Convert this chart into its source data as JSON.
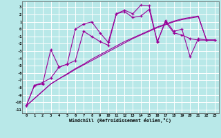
{
  "background_color": "#b8e8e8",
  "grid_color": "#ffffff",
  "line_color": "#990099",
  "xlabel": "Windchill (Refroidissement éolien,°C)",
  "xlim": [
    -0.5,
    23.5
  ],
  "ylim": [
    -11.5,
    3.8
  ],
  "xtick_vals": [
    0,
    1,
    2,
    3,
    4,
    5,
    6,
    7,
    8,
    9,
    10,
    11,
    12,
    13,
    14,
    15,
    16,
    17,
    18,
    19,
    20,
    21,
    22,
    23
  ],
  "xtick_labels": [
    "0",
    "1",
    "2",
    "3",
    "4",
    "5",
    "6",
    "7",
    "8",
    "9",
    "10",
    "11",
    "12",
    "13",
    "14",
    "15",
    "16",
    "17",
    "18",
    "19",
    "20",
    "21",
    "22",
    "23"
  ],
  "ytick_vals": [
    -11,
    -10,
    -9,
    -8,
    -7,
    -6,
    -5,
    -4,
    -3,
    -2,
    -1,
    0,
    1,
    2,
    3
  ],
  "smooth1_x": [
    0,
    1,
    2,
    3,
    4,
    5,
    6,
    7,
    8,
    9,
    10,
    11,
    12,
    13,
    14,
    15,
    16,
    17,
    18,
    19,
    20,
    21,
    22,
    23
  ],
  "smooth1_y": [
    -10.5,
    -9.5,
    -8.5,
    -7.5,
    -6.8,
    -6.1,
    -5.4,
    -4.8,
    -4.1,
    -3.5,
    -2.9,
    -2.3,
    -1.7,
    -1.2,
    -0.7,
    -0.2,
    0.3,
    0.7,
    1.1,
    1.4,
    1.6,
    1.8,
    -1.5,
    -1.5
  ],
  "smooth2_x": [
    0,
    1,
    2,
    3,
    4,
    5,
    6,
    7,
    8,
    9,
    10,
    11,
    12,
    13,
    14,
    15,
    16,
    17,
    18,
    19,
    20,
    21,
    22,
    23
  ],
  "smooth2_y": [
    -10.5,
    -9.5,
    -8.5,
    -7.5,
    -6.8,
    -6.2,
    -5.5,
    -4.9,
    -4.3,
    -3.7,
    -3.1,
    -2.5,
    -1.9,
    -1.3,
    -0.8,
    -0.3,
    0.2,
    0.6,
    1.0,
    1.3,
    1.5,
    1.7,
    -1.5,
    -1.5
  ],
  "jagged1_x": [
    0,
    1,
    2,
    3,
    4,
    5,
    6,
    7,
    8,
    9,
    10,
    11,
    12,
    13,
    14,
    15,
    16,
    17,
    18,
    19,
    20,
    21,
    22,
    23
  ],
  "jagged1_y": [
    -10.5,
    -7.7,
    -7.5,
    -2.8,
    -5.2,
    -4.8,
    0.0,
    0.7,
    1.0,
    -0.5,
    -1.8,
    2.1,
    2.6,
    2.1,
    3.3,
    3.2,
    -1.8,
    1.2,
    -0.3,
    0.0,
    -3.8,
    -1.3,
    -1.5,
    -1.5
  ],
  "jagged2_x": [
    0,
    1,
    2,
    3,
    4,
    5,
    6,
    7,
    8,
    9,
    10,
    11,
    12,
    13,
    14,
    15,
    16,
    17,
    18,
    19,
    20,
    21,
    22,
    23
  ],
  "jagged2_y": [
    -10.5,
    -7.7,
    -7.3,
    -6.7,
    -5.2,
    -4.8,
    -4.3,
    -0.3,
    -1.0,
    -1.7,
    -2.2,
    2.1,
    2.4,
    1.6,
    1.8,
    2.7,
    -1.7,
    1.0,
    -0.5,
    -0.8,
    -1.3,
    -1.5,
    -1.5,
    -1.5
  ]
}
